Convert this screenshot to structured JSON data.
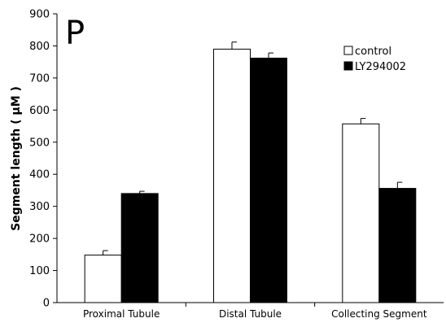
{
  "chart_data": {
    "type": "bar",
    "panel_label": "P",
    "ylabel": "Segment length ( µM )",
    "xlabel": "",
    "ylim": [
      0,
      900
    ],
    "yticks": [
      0,
      100,
      200,
      300,
      400,
      500,
      600,
      700,
      800,
      900
    ],
    "categories": [
      "Proximal Tubule",
      "Distal Tubule",
      "Collecting Segment"
    ],
    "series": [
      {
        "name": "control",
        "color": "#ffffff",
        "values": [
          148,
          790,
          557
        ],
        "errors": [
          14,
          22,
          17
        ]
      },
      {
        "name": "LY294002",
        "color": "#000000",
        "values": [
          340,
          762,
          356
        ],
        "errors": [
          7,
          16,
          19
        ]
      }
    ],
    "grid": false,
    "legend_position": "top-right"
  }
}
